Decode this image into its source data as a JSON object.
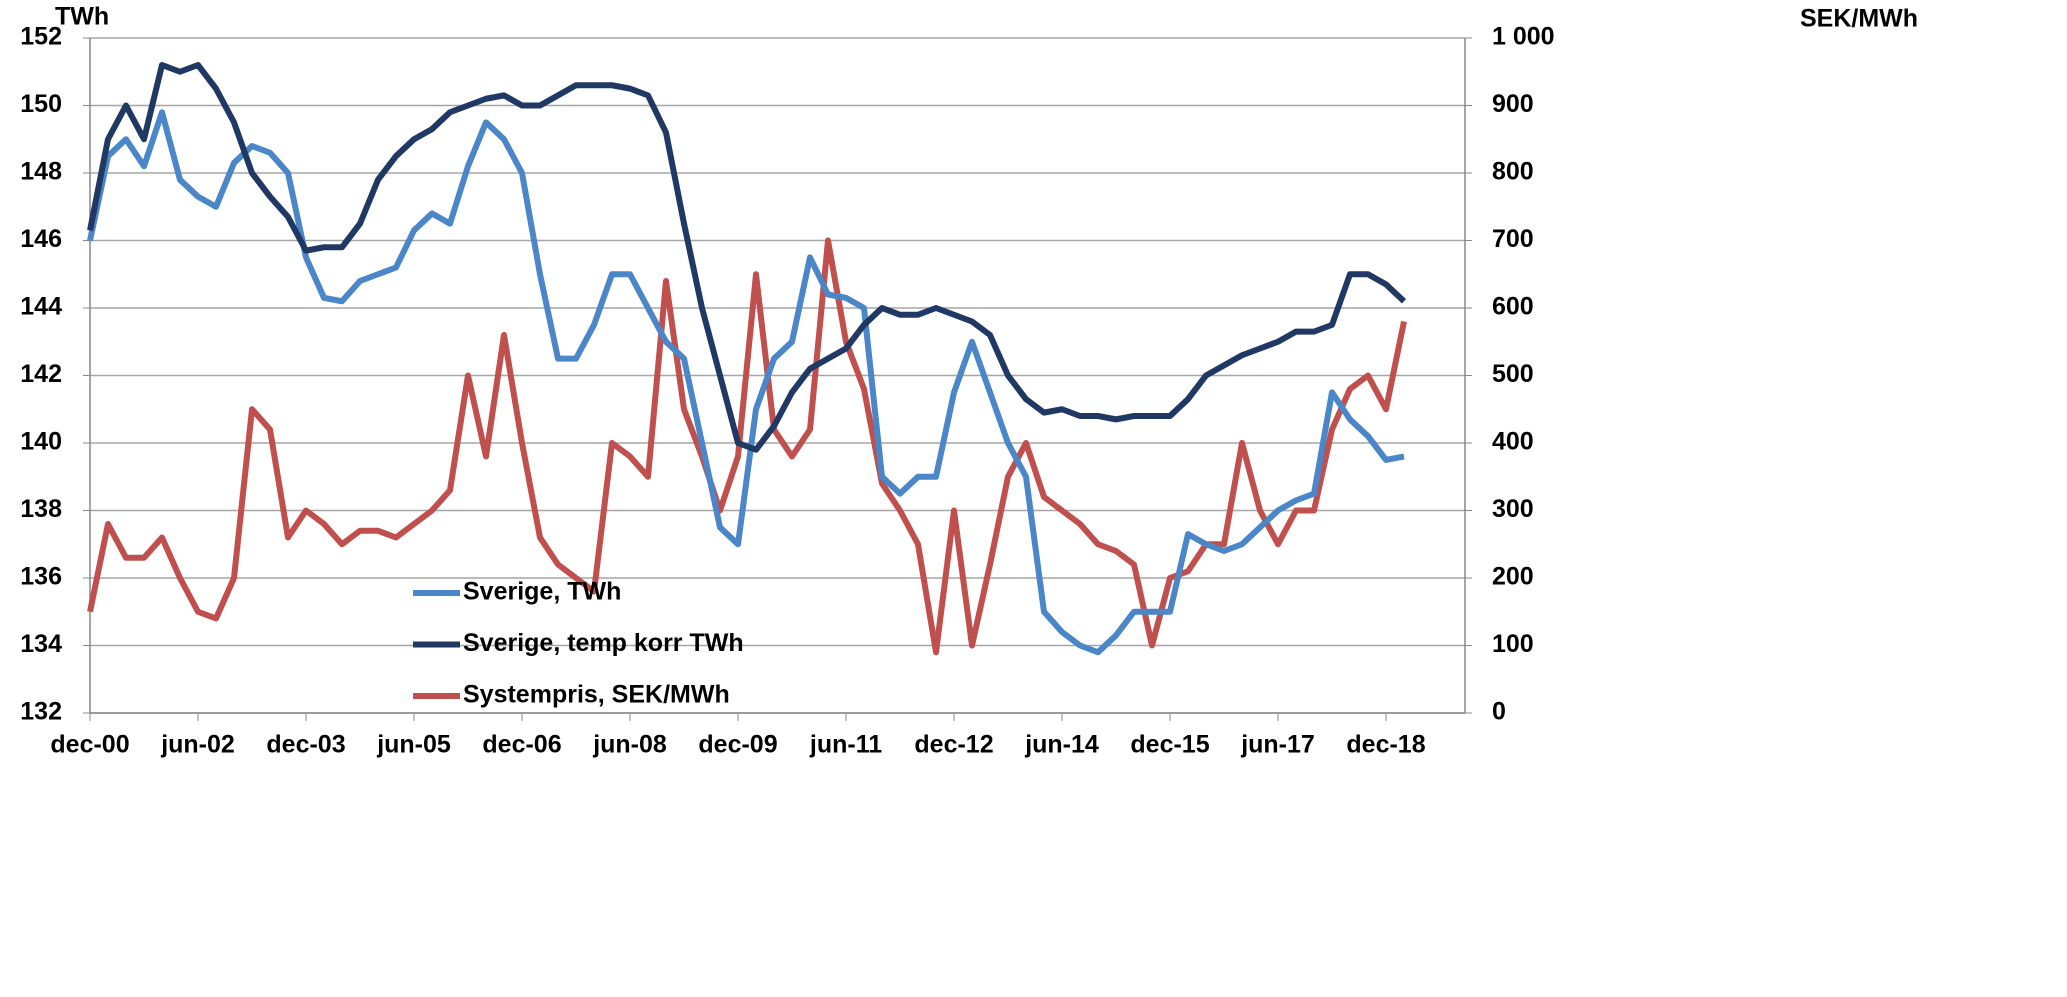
{
  "chart_data": {
    "type": "line",
    "y_label": "TWh",
    "y2_label": "SEK/MWh",
    "categories": [
      "dec-00",
      null,
      null,
      null,
      null,
      null,
      "jun-02",
      null,
      null,
      null,
      null,
      null,
      "dec-03",
      null,
      null,
      null,
      null,
      null,
      "jun-05",
      null,
      null,
      null,
      null,
      null,
      "dec-06",
      null,
      null,
      null,
      null,
      null,
      "jun-08",
      null,
      null,
      null,
      null,
      null,
      "dec-09",
      null,
      null,
      null,
      null,
      null,
      "jun-11",
      null,
      null,
      null,
      null,
      null,
      "dec-12",
      null,
      null,
      null,
      null,
      null,
      "jun-14",
      null,
      null,
      null,
      null,
      null,
      "dec-15",
      null,
      null,
      null,
      null,
      null,
      "jun-17",
      null,
      null,
      null,
      null,
      null,
      "dec-18",
      null
    ],
    "series": [
      {
        "name": "Sverige, TWh",
        "color": "#4a86c8",
        "values": [
          146,
          148.5,
          149,
          148.2,
          149.8,
          147.8,
          147.3,
          147,
          148.3,
          148.8,
          148.6,
          148,
          145.5,
          144.3,
          144.2,
          144.8,
          145,
          145.2,
          146.3,
          146.8,
          146.5,
          148.2,
          149.5,
          149,
          148,
          145,
          142.5,
          142.5,
          143.5,
          145,
          145,
          144,
          143,
          142.5,
          140,
          137.5,
          137,
          141,
          142.5,
          143,
          145.5,
          144.4,
          144.3,
          144,
          139,
          138.5,
          139,
          139,
          141.5,
          143,
          141.5,
          140,
          139,
          135,
          134.4,
          134,
          133.8,
          134.3,
          135,
          135,
          135,
          137.3,
          137,
          136.8,
          137,
          137.5,
          138,
          138.3,
          138.5,
          141.5,
          140.7,
          140.2,
          139.5,
          139.6
        ]
      },
      {
        "name": "Sverige, temp korr TWh",
        "color": "#1f3864",
        "values": [
          146.3,
          149,
          150,
          149,
          151.2,
          151,
          151.2,
          150.5,
          149.5,
          148,
          147.3,
          146.7,
          145.7,
          145.8,
          145.8,
          146.5,
          147.8,
          148.5,
          149,
          149.3,
          149.8,
          150,
          150.2,
          150.3,
          150,
          150,
          150.3,
          150.6,
          150.6,
          150.6,
          150.5,
          150.3,
          149.2,
          146.5,
          144,
          142,
          140,
          139.8,
          140.5,
          141.5,
          142.2,
          142.5,
          142.8,
          143.5,
          144,
          143.8,
          143.8,
          144,
          143.8,
          143.6,
          143.2,
          142,
          141.3,
          140.9,
          141,
          140.8,
          140.8,
          140.7,
          140.8,
          140.8,
          140.8,
          141.3,
          142,
          142.3,
          142.6,
          142.8,
          143,
          143.3,
          143.3,
          143.5,
          145,
          145,
          144.7,
          144.2
        ]
      },
      {
        "name": "Systempris, SEK/MWh",
        "color": "#c0504d",
        "axis": "y2",
        "values": [
          150,
          280,
          230,
          230,
          260,
          200,
          150,
          140,
          200,
          450,
          420,
          260,
          300,
          280,
          250,
          270,
          270,
          260,
          280,
          300,
          330,
          500,
          380,
          560,
          400,
          260,
          220,
          200,
          180,
          400,
          380,
          350,
          640,
          450,
          380,
          300,
          380,
          650,
          420,
          380,
          420,
          700,
          550,
          480,
          340,
          300,
          250,
          90,
          300,
          100,
          220,
          350,
          400,
          320,
          300,
          280,
          250,
          240,
          220,
          100,
          200,
          210,
          250,
          250,
          400,
          300,
          250,
          300,
          300,
          420,
          480,
          500,
          450,
          580
        ]
      }
    ],
    "ylim": [
      132,
      152
    ],
    "yticks": [
      132,
      134,
      136,
      138,
      140,
      142,
      144,
      146,
      148,
      150,
      152
    ],
    "y2lim": [
      0,
      1000
    ],
    "y2ticks": [
      0,
      100,
      200,
      300,
      400,
      500,
      600,
      700,
      800,
      900,
      {
        "value": 1000,
        "label": "1 000"
      }
    ],
    "grid": true
  }
}
